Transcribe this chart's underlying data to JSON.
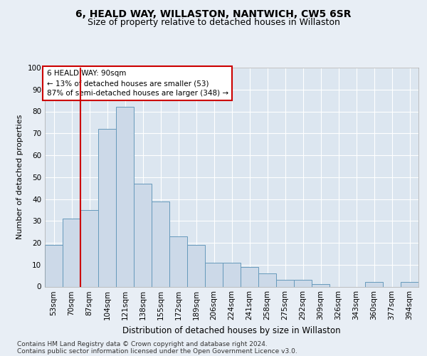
{
  "title1": "6, HEALD WAY, WILLASTON, NANTWICH, CW5 6SR",
  "title2": "Size of property relative to detached houses in Willaston",
  "xlabel": "Distribution of detached houses by size in Willaston",
  "ylabel": "Number of detached properties",
  "categories": [
    "53sqm",
    "70sqm",
    "87sqm",
    "104sqm",
    "121sqm",
    "138sqm",
    "155sqm",
    "172sqm",
    "189sqm",
    "206sqm",
    "224sqm",
    "241sqm",
    "258sqm",
    "275sqm",
    "292sqm",
    "309sqm",
    "326sqm",
    "343sqm",
    "360sqm",
    "377sqm",
    "394sqm"
  ],
  "values": [
    19,
    31,
    35,
    72,
    82,
    47,
    39,
    23,
    19,
    11,
    11,
    9,
    6,
    3,
    3,
    1,
    0,
    0,
    2,
    0,
    2
  ],
  "bar_color": "#ccd9e8",
  "bar_edge_color": "#6699bb",
  "vline_color": "#cc0000",
  "vline_index": 2,
  "annotation_text": "6 HEALD WAY: 90sqm\n← 13% of detached houses are smaller (53)\n87% of semi-detached houses are larger (348) →",
  "annotation_box_facecolor": "#ffffff",
  "annotation_box_edgecolor": "#cc0000",
  "ylim": [
    0,
    100
  ],
  "yticks": [
    0,
    10,
    20,
    30,
    40,
    50,
    60,
    70,
    80,
    90,
    100
  ],
  "bg_color": "#e8eef5",
  "plot_bg_color": "#dce6f0",
  "grid_color": "#ffffff",
  "footer_line1": "Contains HM Land Registry data © Crown copyright and database right 2024.",
  "footer_line2": "Contains public sector information licensed under the Open Government Licence v3.0.",
  "title1_fontsize": 10,
  "title2_fontsize": 9,
  "xlabel_fontsize": 8.5,
  "ylabel_fontsize": 8,
  "tick_fontsize": 7.5,
  "annot_fontsize": 7.5,
  "footer_fontsize": 6.5
}
